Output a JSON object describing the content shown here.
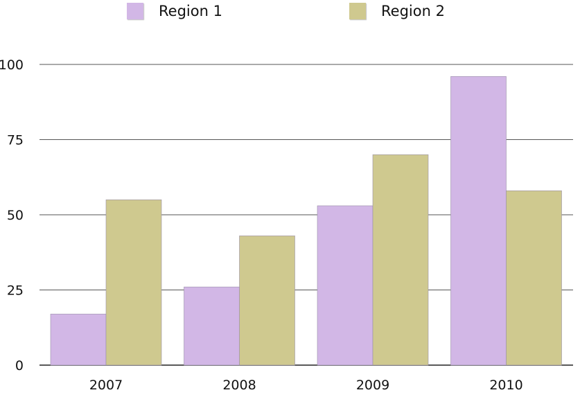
{
  "chart_data": {
    "type": "bar",
    "categories": [
      "2007",
      "2008",
      "2009",
      "2010"
    ],
    "series": [
      {
        "name": "Region 1",
        "values": [
          17,
          26,
          53,
          96
        ],
        "color": "#d2b7e6"
      },
      {
        "name": "Region 2",
        "values": [
          55,
          43,
          70,
          58
        ],
        "color": "#cfc98f"
      }
    ],
    "ylim": [
      0,
      100
    ],
    "yticks": [
      0,
      25,
      50,
      75,
      100
    ],
    "grid": true,
    "legend": "top",
    "xlabel": "",
    "ylabel": "",
    "title": ""
  }
}
